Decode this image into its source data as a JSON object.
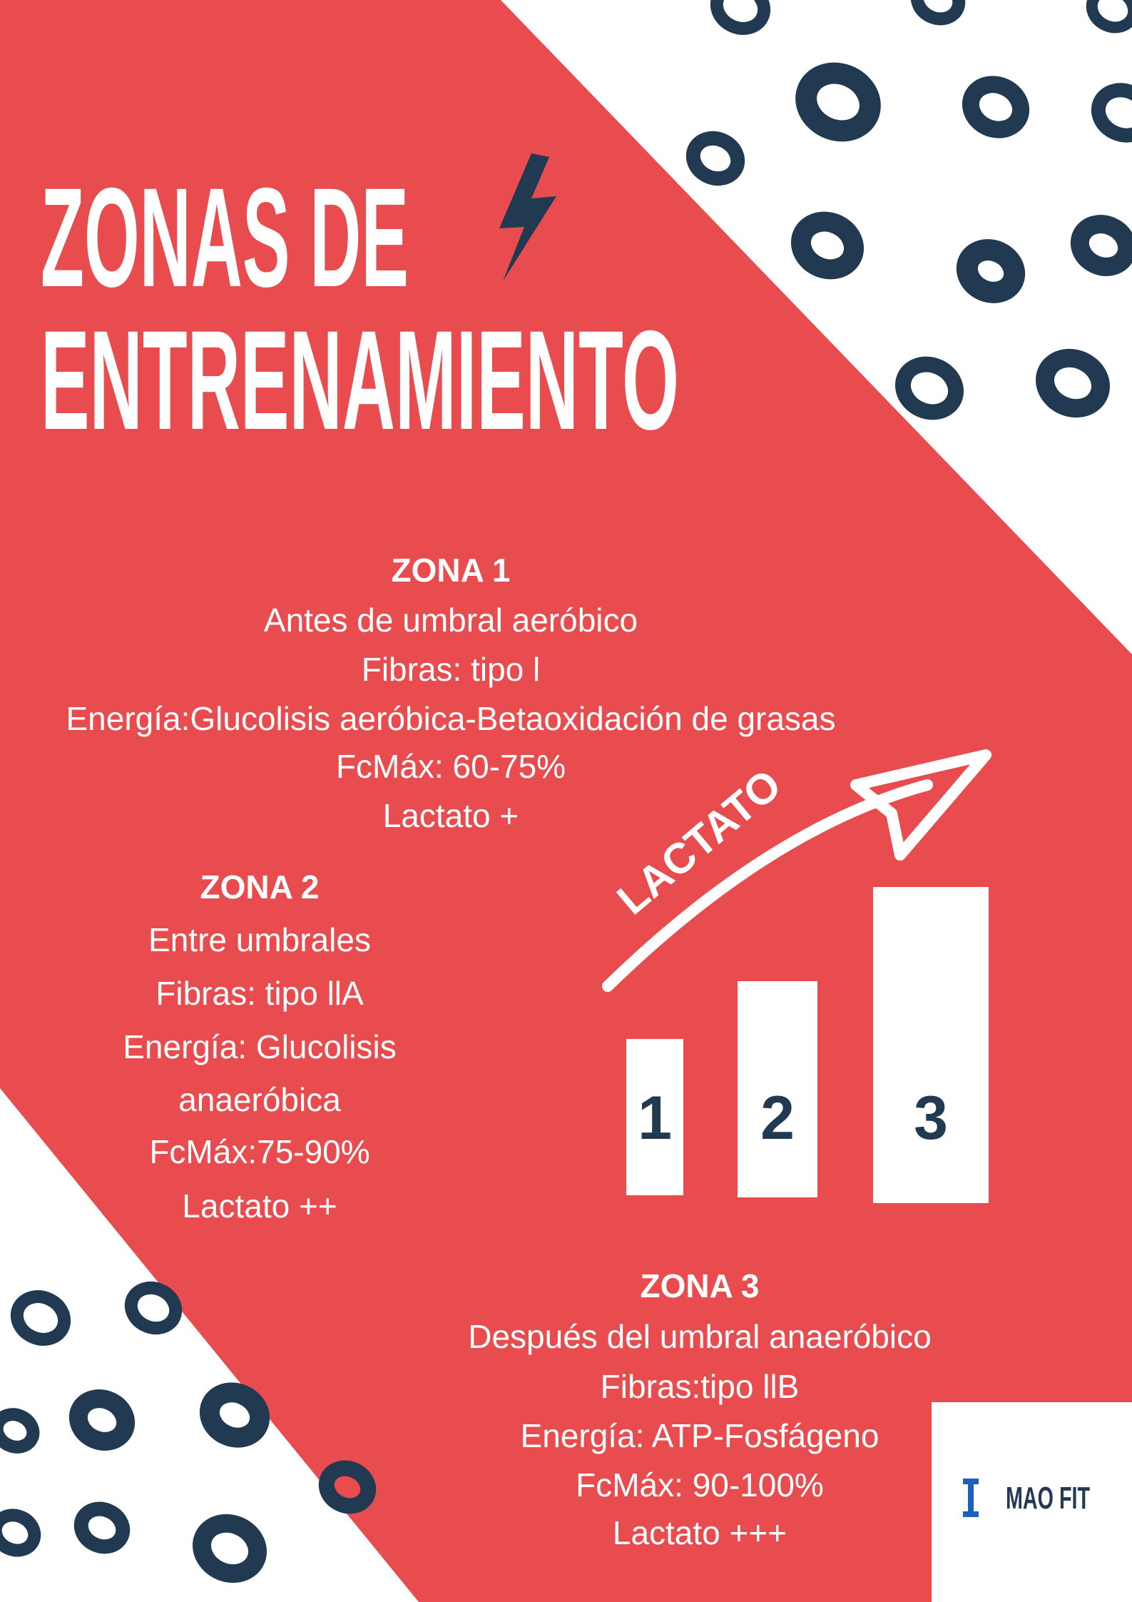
{
  "title": {
    "lines": [
      "ZONAS DE",
      "ENTRENAMIENTO"
    ]
  },
  "zones": [
    {
      "heading": "ZONA 1",
      "lines": [
        "Antes de umbral aeróbico",
        "Fibras: tipo l",
        "Energía:Glucolisis aeróbica-Betaoxidación de grasas",
        "FcMáx: 60-75%",
        "Lactato +"
      ]
    },
    {
      "heading": "ZONA 2",
      "lines": [
        "Entre umbrales",
        "Fibras: tipo llA",
        "Energía: Glucolisis",
        "anaeróbica",
        "FcMáx:75-90%",
        "Lactato ++"
      ]
    },
    {
      "heading": "ZONA 3",
      "lines": [
        "Después del umbral anaeróbico",
        "Fibras:tipo llB",
        "Energía: ATP-Fosfágeno",
        "FcMáx: 90-100%",
        "Lactato +++"
      ]
    }
  ],
  "graphic": {
    "arrow_label": "LACTATO",
    "steps": [
      "1",
      "2",
      "3"
    ]
  },
  "logo": {
    "name": "MAO FIT"
  }
}
